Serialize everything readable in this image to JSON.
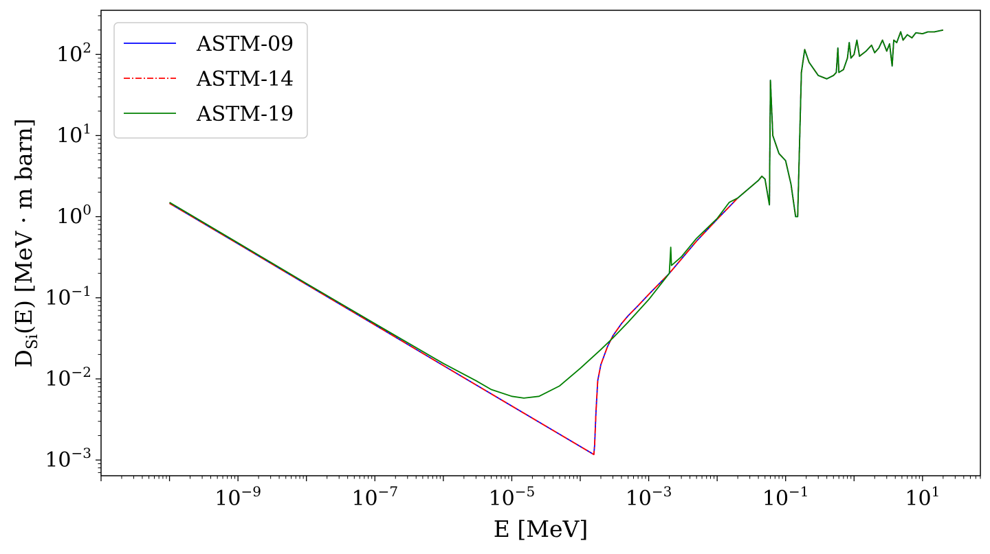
{
  "chart_data": {
    "type": "line",
    "xscale": "log",
    "yscale": "log",
    "xlabel": "E [MeV]",
    "ylabel_main": "D",
    "ylabel_sub": "Si",
    "ylabel_rest": "(E) [MeV · m barn]",
    "xlim": [
      1e-11,
      70
    ],
    "ylim": [
      0.00064,
      350
    ],
    "x_ticks": [
      {
        "base": "10",
        "exp": "−9",
        "value": 1e-09
      },
      {
        "base": "10",
        "exp": "−7",
        "value": 1e-07
      },
      {
        "base": "10",
        "exp": "−5",
        "value": 1e-05
      },
      {
        "base": "10",
        "exp": "−3",
        "value": 0.001
      },
      {
        "base": "10",
        "exp": "−1",
        "value": 0.1
      },
      {
        "base": "10",
        "exp": "1",
        "value": 10
      }
    ],
    "y_ticks": [
      {
        "base": "10",
        "exp": "−3",
        "value": 0.001
      },
      {
        "base": "10",
        "exp": "−2",
        "value": 0.01
      },
      {
        "base": "10",
        "exp": "−1",
        "value": 0.1
      },
      {
        "base": "10",
        "exp": "0",
        "value": 1
      },
      {
        "base": "10",
        "exp": "1",
        "value": 10
      },
      {
        "base": "10",
        "exp": "2",
        "value": 100
      }
    ],
    "legend_position": "top-left",
    "grid": false,
    "series": [
      {
        "name": "ASTM-09",
        "color": "#0000ff",
        "style": "solid",
        "points": [
          [
            1e-10,
            1.46
          ],
          [
            1e-09,
            0.463
          ],
          [
            1e-08,
            0.146
          ],
          [
            1e-07,
            0.0463
          ],
          [
            1e-06,
            0.0146
          ],
          [
            1e-05,
            0.00463
          ],
          [
            0.000158,
            0.00117
          ],
          [
            0.000162,
            0.0015
          ],
          [
            0.00017,
            0.004
          ],
          [
            0.00018,
            0.0095
          ],
          [
            0.0002,
            0.015
          ],
          [
            0.00025,
            0.025
          ],
          [
            0.0003,
            0.034
          ],
          [
            0.0004,
            0.048
          ],
          [
            0.0005,
            0.06
          ],
          [
            0.0007,
            0.08
          ],
          [
            0.001,
            0.11
          ],
          [
            0.002,
            0.2
          ],
          [
            0.003,
            0.3
          ],
          [
            0.005,
            0.5
          ],
          [
            0.01,
            0.93
          ],
          [
            0.02,
            1.7
          ],
          [
            0.04,
            2.8
          ],
          [
            0.045,
            3.15
          ],
          [
            0.05,
            2.9
          ],
          [
            0.058,
            1.4
          ],
          [
            0.06,
            48
          ],
          [
            0.065,
            10
          ],
          [
            0.08,
            6
          ],
          [
            0.1,
            4.9
          ],
          [
            0.12,
            2.5
          ],
          [
            0.14,
            1.0
          ],
          [
            0.15,
            1.0
          ],
          [
            0.17,
            60
          ],
          [
            0.19,
            115
          ],
          [
            0.22,
            80
          ],
          [
            0.3,
            55
          ],
          [
            0.4,
            50
          ],
          [
            0.5,
            55
          ],
          [
            0.55,
            60
          ],
          [
            0.58,
            120
          ],
          [
            0.6,
            60
          ],
          [
            0.7,
            65
          ],
          [
            0.8,
            90
          ],
          [
            0.85,
            140
          ],
          [
            0.9,
            90
          ],
          [
            1.0,
            100
          ],
          [
            1.1,
            150
          ],
          [
            1.2,
            95
          ],
          [
            1.5,
            110
          ],
          [
            1.8,
            130
          ],
          [
            2.0,
            105
          ],
          [
            2.3,
            120
          ],
          [
            2.6,
            150
          ],
          [
            3.0,
            110
          ],
          [
            3.3,
            135
          ],
          [
            3.6,
            72
          ],
          [
            3.8,
            150
          ],
          [
            4.2,
            140
          ],
          [
            4.8,
            190
          ],
          [
            5.2,
            150
          ],
          [
            6,
            175
          ],
          [
            7,
            160
          ],
          [
            8,
            185
          ],
          [
            10,
            180
          ],
          [
            12,
            190
          ],
          [
            15,
            190
          ],
          [
            20,
            200
          ]
        ]
      },
      {
        "name": "ASTM-14",
        "color": "#ff0000",
        "style": "dashdot",
        "points": [
          [
            1e-10,
            1.46
          ],
          [
            1e-09,
            0.463
          ],
          [
            1e-08,
            0.146
          ],
          [
            1e-07,
            0.0463
          ],
          [
            1e-06,
            0.0146
          ],
          [
            1e-05,
            0.00463
          ],
          [
            0.000158,
            0.00117
          ],
          [
            0.000162,
            0.0015
          ],
          [
            0.00017,
            0.004
          ],
          [
            0.00018,
            0.0095
          ],
          [
            0.0002,
            0.015
          ],
          [
            0.00025,
            0.025
          ],
          [
            0.0003,
            0.034
          ],
          [
            0.0004,
            0.048
          ],
          [
            0.0005,
            0.06
          ],
          [
            0.0007,
            0.08
          ],
          [
            0.001,
            0.11
          ],
          [
            0.002,
            0.2
          ],
          [
            0.003,
            0.3
          ],
          [
            0.005,
            0.5
          ],
          [
            0.01,
            0.93
          ],
          [
            0.02,
            1.7
          ],
          [
            0.04,
            2.8
          ],
          [
            0.045,
            3.15
          ],
          [
            0.05,
            2.9
          ],
          [
            0.058,
            1.4
          ],
          [
            0.06,
            48
          ],
          [
            0.065,
            10
          ],
          [
            0.08,
            6
          ],
          [
            0.1,
            4.9
          ],
          [
            0.12,
            2.5
          ],
          [
            0.14,
            1.0
          ],
          [
            0.15,
            1.0
          ],
          [
            0.17,
            60
          ],
          [
            0.19,
            115
          ],
          [
            0.22,
            80
          ],
          [
            0.3,
            55
          ],
          [
            0.4,
            50
          ],
          [
            0.5,
            55
          ],
          [
            0.55,
            60
          ],
          [
            0.58,
            120
          ],
          [
            0.6,
            60
          ],
          [
            0.7,
            65
          ],
          [
            0.8,
            90
          ],
          [
            0.85,
            140
          ],
          [
            0.9,
            90
          ],
          [
            1.0,
            100
          ],
          [
            1.1,
            150
          ],
          [
            1.2,
            95
          ],
          [
            1.5,
            110
          ],
          [
            1.8,
            130
          ],
          [
            2.0,
            105
          ],
          [
            2.3,
            120
          ],
          [
            2.6,
            150
          ],
          [
            3.0,
            110
          ],
          [
            3.3,
            135
          ],
          [
            3.6,
            72
          ],
          [
            3.8,
            150
          ],
          [
            4.2,
            140
          ],
          [
            4.8,
            190
          ],
          [
            5.2,
            150
          ],
          [
            6,
            175
          ],
          [
            7,
            160
          ],
          [
            8,
            185
          ],
          [
            10,
            180
          ],
          [
            12,
            190
          ],
          [
            15,
            190
          ],
          [
            20,
            200
          ]
        ]
      },
      {
        "name": "ASTM-19",
        "color": "#008000",
        "style": "solid",
        "points": [
          [
            1e-10,
            1.5
          ],
          [
            1e-09,
            0.475
          ],
          [
            1e-08,
            0.15
          ],
          [
            1e-07,
            0.048
          ],
          [
            1e-06,
            0.0155
          ],
          [
            3e-06,
            0.0095
          ],
          [
            5e-06,
            0.0074
          ],
          [
            1e-05,
            0.0061
          ],
          [
            1.5e-05,
            0.0058
          ],
          [
            2.5e-05,
            0.0061
          ],
          [
            5e-05,
            0.0082
          ],
          [
            0.0001,
            0.0135
          ],
          [
            0.0002,
            0.023
          ],
          [
            0.0003,
            0.032
          ],
          [
            0.0005,
            0.05
          ],
          [
            0.001,
            0.095
          ],
          [
            0.002,
            0.2
          ],
          [
            0.0021,
            0.42
          ],
          [
            0.00215,
            0.25
          ],
          [
            0.003,
            0.32
          ],
          [
            0.005,
            0.54
          ],
          [
            0.01,
            0.95
          ],
          [
            0.015,
            1.5
          ],
          [
            0.02,
            1.7
          ],
          [
            0.04,
            2.8
          ],
          [
            0.045,
            3.15
          ],
          [
            0.05,
            2.9
          ],
          [
            0.058,
            1.4
          ],
          [
            0.06,
            48
          ],
          [
            0.065,
            10
          ],
          [
            0.08,
            6
          ],
          [
            0.1,
            4.9
          ],
          [
            0.12,
            2.5
          ],
          [
            0.14,
            1.0
          ],
          [
            0.15,
            1.0
          ],
          [
            0.17,
            60
          ],
          [
            0.19,
            115
          ],
          [
            0.22,
            80
          ],
          [
            0.3,
            55
          ],
          [
            0.4,
            50
          ],
          [
            0.5,
            55
          ],
          [
            0.55,
            60
          ],
          [
            0.58,
            120
          ],
          [
            0.6,
            60
          ],
          [
            0.7,
            65
          ],
          [
            0.8,
            90
          ],
          [
            0.85,
            140
          ],
          [
            0.9,
            90
          ],
          [
            1.0,
            100
          ],
          [
            1.1,
            150
          ],
          [
            1.2,
            95
          ],
          [
            1.5,
            110
          ],
          [
            1.8,
            130
          ],
          [
            2.0,
            105
          ],
          [
            2.3,
            120
          ],
          [
            2.6,
            150
          ],
          [
            3.0,
            110
          ],
          [
            3.3,
            135
          ],
          [
            3.6,
            72
          ],
          [
            3.8,
            150
          ],
          [
            4.2,
            140
          ],
          [
            4.8,
            190
          ],
          [
            5.2,
            150
          ],
          [
            6,
            175
          ],
          [
            7,
            160
          ],
          [
            8,
            185
          ],
          [
            10,
            180
          ],
          [
            12,
            190
          ],
          [
            15,
            190
          ],
          [
            20,
            200
          ]
        ]
      }
    ]
  }
}
